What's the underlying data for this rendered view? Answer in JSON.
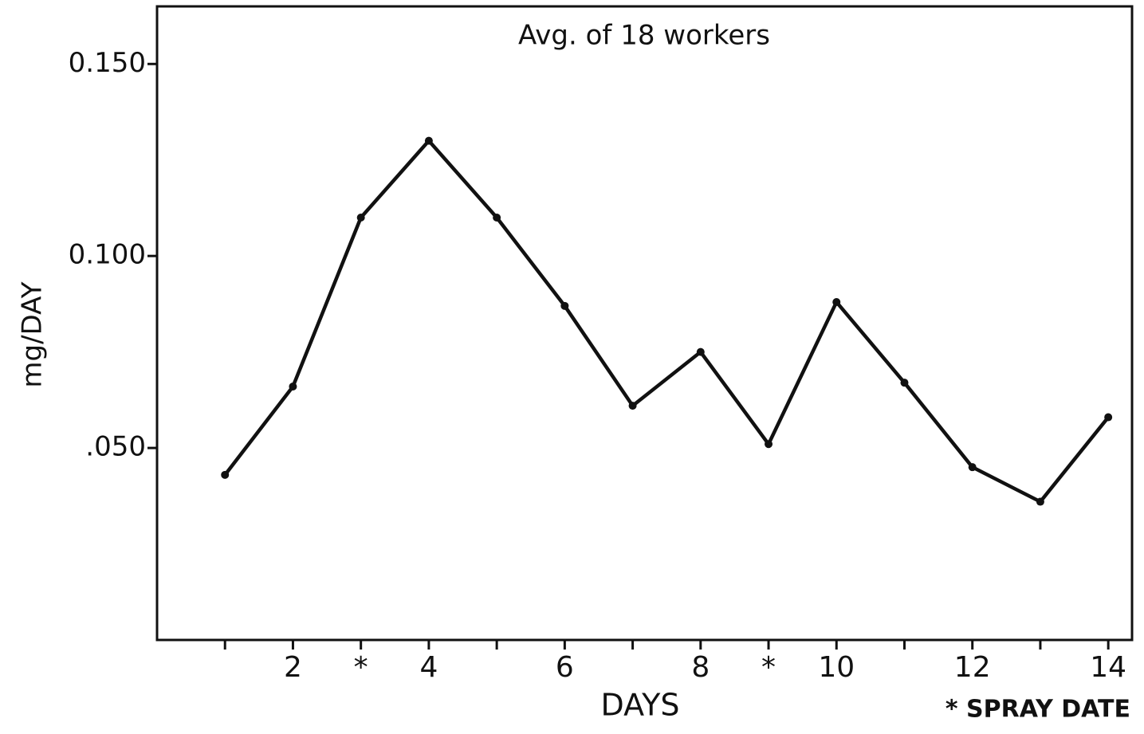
{
  "chart_data": {
    "type": "line",
    "title": "Avg. of 18 workers",
    "xlabel": "DAYS",
    "ylabel": "mg/DAY",
    "annotation": "* SPRAY DATE",
    "x": [
      1,
      2,
      3,
      4,
      5,
      6,
      7,
      8,
      9,
      10,
      11,
      12,
      13,
      14
    ],
    "series": [
      {
        "color": "#111111",
        "values": [
          0.043,
          0.066,
          0.11,
          0.13,
          0.11,
          0.087,
          0.061,
          0.075,
          0.051,
          0.088,
          0.067,
          0.045,
          0.036,
          0.058
        ]
      }
    ],
    "xlim": [
      0,
      14.35
    ],
    "xticks": [
      2,
      {
        "value": 3,
        "label": "*"
      },
      4,
      6,
      8,
      {
        "value": 9,
        "label": "*"
      },
      10,
      12,
      14
    ],
    "xminor_ticks": [
      1,
      5,
      7,
      11,
      13
    ],
    "ylim": [
      0,
      0.165
    ],
    "yticks": [
      {
        "value": 0.05,
        "label": ".050"
      },
      {
        "value": 0.1,
        "label": "0.100"
      },
      {
        "value": 0.15,
        "label": "0.150"
      }
    ],
    "grid": false
  }
}
